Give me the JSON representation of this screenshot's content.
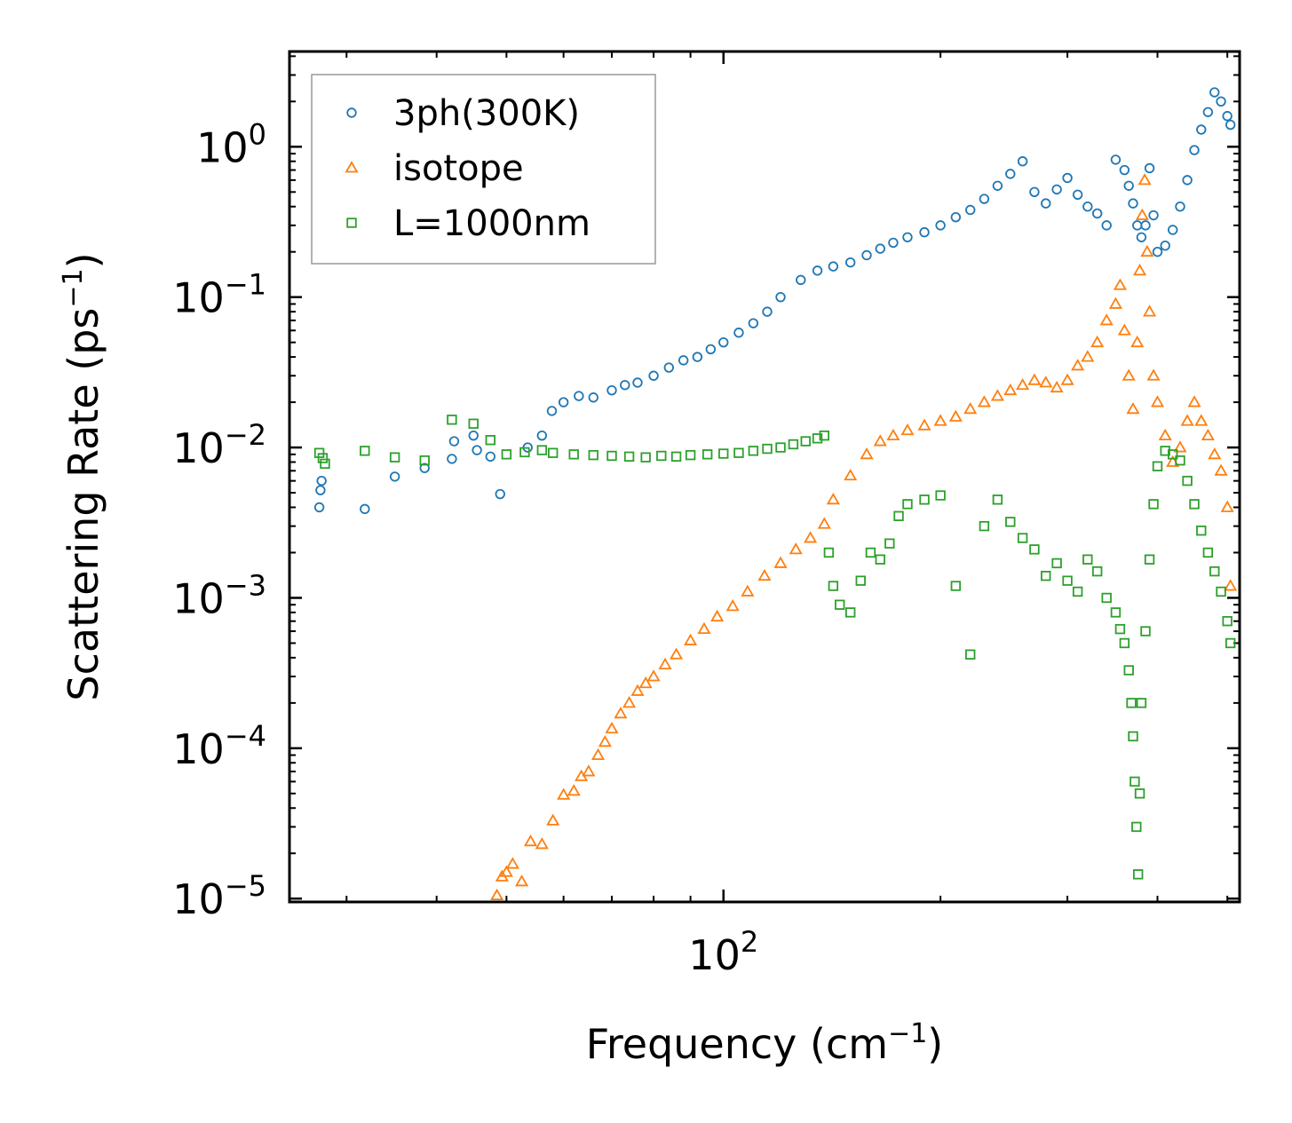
{
  "chart_data": {
    "type": "scatter",
    "xscale": "log",
    "yscale": "log",
    "xlabel": "Frequency (cm",
    "xlabel_sup": "−1",
    "xlabel_tail": ")",
    "ylabel": "Scattering Rate (ps",
    "ylabel_sup": "−1",
    "ylabel_tail": ")",
    "xlim": [
      25,
      520
    ],
    "ylim": [
      9.5e-06,
      4.3
    ],
    "x_tick_labels": [
      {
        "value": 100,
        "base": "10",
        "exp": "2"
      }
    ],
    "y_tick_labels": [
      {
        "value": 1,
        "base": "10",
        "exp": "0"
      },
      {
        "value": 0.1,
        "base": "10",
        "exp": "−1"
      },
      {
        "value": 0.01,
        "base": "10",
        "exp": "−2"
      },
      {
        "value": 0.001,
        "base": "10",
        "exp": "−3"
      },
      {
        "value": 0.0001,
        "base": "10",
        "exp": "−4"
      },
      {
        "value": 1e-05,
        "base": "10",
        "exp": "−5"
      }
    ],
    "legend_position": "top-left",
    "series": [
      {
        "name": "3ph(300K)",
        "marker": "circle",
        "color": "#1f77b4",
        "x": [
          27.5,
          27.6,
          27.7,
          31.8,
          35,
          38.5,
          42,
          42.3,
          45,
          45.5,
          47.5,
          49,
          53.5,
          56,
          57.8,
          60,
          63,
          66,
          70,
          73,
          76,
          80,
          84,
          88,
          92,
          96,
          100,
          105,
          110,
          115,
          120,
          128,
          135,
          142,
          150,
          158,
          165,
          172,
          180,
          190,
          200,
          210,
          220,
          230,
          240,
          250,
          260,
          270,
          280,
          290,
          300,
          310,
          320,
          330,
          340,
          350,
          360,
          365,
          370,
          375,
          380,
          385,
          390,
          395,
          400,
          410,
          420,
          430,
          440,
          450,
          460,
          470,
          480,
          490,
          500,
          505
        ],
        "y": [
          0.004,
          0.0052,
          0.006,
          0.0039,
          0.0064,
          0.0073,
          0.0084,
          0.011,
          0.012,
          0.0096,
          0.0087,
          0.0049,
          0.01,
          0.012,
          0.0175,
          0.02,
          0.022,
          0.0215,
          0.024,
          0.026,
          0.027,
          0.03,
          0.034,
          0.038,
          0.04,
          0.045,
          0.05,
          0.058,
          0.067,
          0.08,
          0.1,
          0.13,
          0.15,
          0.16,
          0.17,
          0.19,
          0.21,
          0.23,
          0.25,
          0.27,
          0.3,
          0.34,
          0.38,
          0.45,
          0.55,
          0.66,
          0.8,
          0.5,
          0.42,
          0.52,
          0.62,
          0.48,
          0.4,
          0.36,
          0.3,
          0.82,
          0.7,
          0.55,
          0.42,
          0.3,
          0.25,
          0.3,
          0.72,
          0.35,
          0.2,
          0.22,
          0.28,
          0.4,
          0.6,
          0.95,
          1.3,
          1.7,
          2.3,
          2.0,
          1.6,
          1.4
        ]
      },
      {
        "name": "isotope",
        "marker": "triangle",
        "color": "#ff7f0e",
        "x": [
          48.5,
          49.3,
          50,
          51,
          52.5,
          54,
          56,
          58,
          60,
          62,
          63.5,
          65,
          67,
          68.5,
          70,
          72,
          74,
          76,
          78,
          80,
          83,
          86,
          90,
          94,
          98,
          103,
          108,
          114,
          120,
          126,
          132,
          138,
          142,
          150,
          158,
          165,
          172,
          180,
          190,
          200,
          210,
          220,
          230,
          240,
          250,
          260,
          270,
          280,
          290,
          300,
          310,
          320,
          330,
          340,
          350,
          355,
          360,
          365,
          370,
          375,
          378,
          381,
          384,
          387,
          390,
          395,
          400,
          410,
          420,
          430,
          440,
          450,
          460,
          470,
          480,
          490,
          500,
          505
        ],
        "y": [
          1.05e-05,
          1.4e-05,
          1.5e-05,
          1.7e-05,
          1.3e-05,
          2.4e-05,
          2.3e-05,
          3.3e-05,
          4.9e-05,
          5.2e-05,
          6.5e-05,
          7e-05,
          9e-05,
          0.00011,
          0.000135,
          0.00017,
          0.0002,
          0.00024,
          0.00027,
          0.0003,
          0.00036,
          0.00042,
          0.00052,
          0.00062,
          0.00075,
          0.00088,
          0.0011,
          0.0014,
          0.0017,
          0.0021,
          0.0025,
          0.0031,
          0.0045,
          0.0065,
          0.009,
          0.011,
          0.012,
          0.013,
          0.014,
          0.015,
          0.016,
          0.018,
          0.02,
          0.022,
          0.024,
          0.026,
          0.028,
          0.027,
          0.025,
          0.028,
          0.035,
          0.04,
          0.05,
          0.07,
          0.09,
          0.12,
          0.06,
          0.03,
          0.018,
          0.05,
          0.15,
          0.35,
          0.6,
          0.2,
          0.08,
          0.03,
          0.02,
          0.012,
          0.008,
          0.01,
          0.015,
          0.02,
          0.015,
          0.012,
          0.009,
          0.007,
          0.004,
          0.0012
        ]
      },
      {
        "name": "L=1000nm",
        "marker": "square",
        "color": "#2ca02c",
        "x": [
          27.5,
          27.8,
          28,
          31.8,
          35,
          38.5,
          42,
          45,
          47.5,
          50,
          53,
          56,
          58,
          62,
          66,
          70,
          74,
          78,
          82,
          86,
          90,
          95,
          100,
          105,
          110,
          115,
          120,
          125,
          130,
          135,
          138,
          140,
          142,
          145,
          150,
          155,
          160,
          165,
          170,
          175,
          180,
          190,
          200,
          210,
          220,
          230,
          240,
          250,
          260,
          270,
          280,
          290,
          300,
          310,
          320,
          330,
          340,
          350,
          355,
          360,
          365,
          368,
          370,
          372,
          374,
          376,
          378,
          380,
          385,
          390,
          395,
          400,
          410,
          420,
          430,
          440,
          450,
          460,
          470,
          480,
          490,
          500,
          505
        ],
        "y": [
          0.0092,
          0.0085,
          0.0078,
          0.0095,
          0.0086,
          0.0082,
          0.0153,
          0.0144,
          0.0112,
          0.009,
          0.0093,
          0.0096,
          0.0092,
          0.009,
          0.0089,
          0.0088,
          0.0087,
          0.0086,
          0.0088,
          0.0087,
          0.0089,
          0.009,
          0.0091,
          0.0092,
          0.0095,
          0.0098,
          0.01,
          0.0105,
          0.011,
          0.0115,
          0.012,
          0.002,
          0.0012,
          0.0009,
          0.0008,
          0.0013,
          0.002,
          0.0018,
          0.0023,
          0.0035,
          0.0042,
          0.0045,
          0.0048,
          0.0012,
          0.00042,
          0.003,
          0.0045,
          0.0032,
          0.0025,
          0.0021,
          0.0014,
          0.0017,
          0.0013,
          0.0011,
          0.0018,
          0.0015,
          0.001,
          0.0008,
          0.00062,
          0.0005,
          0.00033,
          0.0002,
          0.00012,
          6e-05,
          3e-05,
          1.45e-05,
          5e-05,
          0.0002,
          0.0006,
          0.0018,
          0.0042,
          0.0075,
          0.0095,
          0.009,
          0.0082,
          0.006,
          0.0042,
          0.0028,
          0.002,
          0.0015,
          0.0011,
          0.0007,
          0.0005
        ]
      }
    ]
  }
}
